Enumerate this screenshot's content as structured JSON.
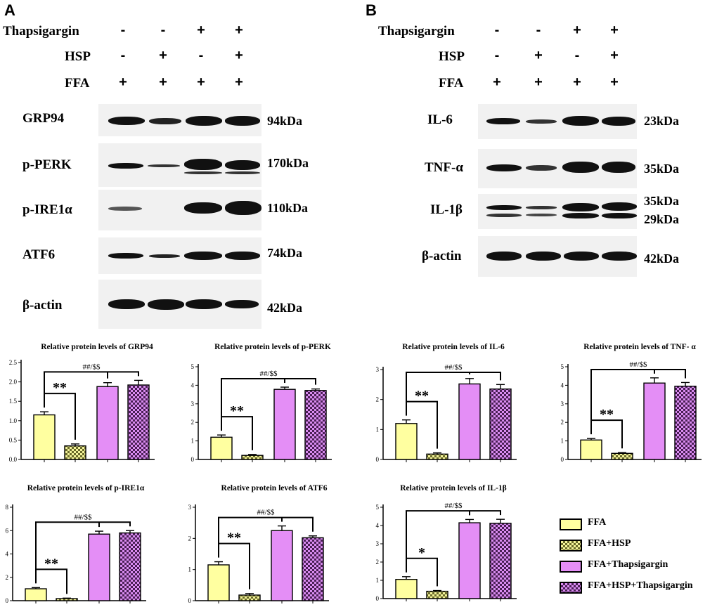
{
  "panel_a": {
    "letter": "A",
    "conditions": [
      {
        "label": "Thapsigargin",
        "signs": [
          "-",
          "-",
          "+",
          "+"
        ]
      },
      {
        "label": "HSP",
        "signs": [
          "-",
          "+",
          "-",
          "+"
        ]
      },
      {
        "label": "FFA",
        "signs": [
          "+",
          "+",
          "+",
          "+"
        ]
      }
    ],
    "blots": [
      {
        "label": "GRP94",
        "kda": [
          "94kDa"
        ]
      },
      {
        "label": "p-PERK",
        "kda": [
          "170kDa"
        ]
      },
      {
        "label": "p-IRE1α",
        "kda": [
          "110kDa"
        ]
      },
      {
        "label": "ATF6",
        "kda": [
          "74kDa"
        ]
      },
      {
        "label": "β-actin",
        "kda": [
          "42kDa"
        ]
      }
    ]
  },
  "panel_b": {
    "letter": "B",
    "conditions": [
      {
        "label": "Thapsigargin",
        "signs": [
          "-",
          "-",
          "+",
          "+"
        ]
      },
      {
        "label": "HSP",
        "signs": [
          "-",
          "+",
          "-",
          "+"
        ]
      },
      {
        "label": "FFA",
        "signs": [
          "+",
          "+",
          "+",
          "+"
        ]
      }
    ],
    "blots": [
      {
        "label": "IL-6",
        "kda": [
          "23kDa"
        ]
      },
      {
        "label": "TNF-α",
        "kda": [
          "35kDa"
        ]
      },
      {
        "label": "IL-1β",
        "kda": [
          "35kDa",
          "29kDa"
        ]
      },
      {
        "label": "β-actin",
        "kda": [
          "42kDa"
        ]
      }
    ]
  },
  "legend": {
    "entries": [
      "FFA",
      "FFA+HSP",
      "FFA+Thapsigargin",
      "FFA+HSP+Thapsigargin"
    ],
    "colors": {
      "ffa": "#ffffa0",
      "hsp": "#f3f39a",
      "thap": "#e48ef6",
      "combo": "#c978e0"
    }
  },
  "chart_data": [
    {
      "type": "bar",
      "title": "Relative protein levels of GRP94",
      "categories": [
        "FFA",
        "FFA+HSP",
        "FFA+Thapsigargin",
        "FFA+HSP+Thapsigargin"
      ],
      "values": [
        1.15,
        0.35,
        1.88,
        1.92
      ],
      "errors": [
        0.08,
        0.05,
        0.1,
        0.12
      ],
      "ylim": [
        0,
        2.5
      ],
      "yticks": [
        "0.0",
        "0.5",
        "1.0",
        "1.5",
        "2.0",
        "2.5"
      ],
      "sig_low": "**",
      "sig_high": "##/$$"
    },
    {
      "type": "bar",
      "title": "Relative protein levels of p-PERK",
      "categories": [
        "FFA",
        "FFA+HSP",
        "FFA+Thapsigargin",
        "FFA+HSP+Thapsigargin"
      ],
      "values": [
        1.2,
        0.22,
        3.78,
        3.72
      ],
      "errors": [
        0.12,
        0.05,
        0.12,
        0.08
      ],
      "ylim": [
        0,
        5
      ],
      "yticks": [
        "0",
        "1",
        "2",
        "3",
        "4",
        "5"
      ],
      "sig_low": "**",
      "sig_high": "##/$$"
    },
    {
      "type": "bar",
      "title": "Relative protein levels of IL-6",
      "categories": [
        "FFA",
        "FFA+HSP",
        "FFA+Thapsigargin",
        "FFA+HSP+Thapsigargin"
      ],
      "values": [
        1.2,
        0.18,
        2.52,
        2.35
      ],
      "errors": [
        0.12,
        0.04,
        0.18,
        0.15
      ],
      "ylim": [
        0,
        3
      ],
      "yticks": [
        "0",
        "1",
        "2",
        "3"
      ],
      "sig_low": "**",
      "sig_high": "##/$$"
    },
    {
      "type": "bar",
      "title": "Relative protein levels of TNF- α",
      "categories": [
        "FFA",
        "FFA+HSP",
        "FFA+Thapsigargin",
        "FFA+HSP+Thapsigargin"
      ],
      "values": [
        1.05,
        0.33,
        4.12,
        3.95
      ],
      "errors": [
        0.08,
        0.04,
        0.28,
        0.2
      ],
      "ylim": [
        0,
        5
      ],
      "yticks": [
        "0",
        "1",
        "2",
        "3",
        "4",
        "5"
      ],
      "sig_low": "**",
      "sig_high": "##/$$"
    },
    {
      "type": "bar",
      "title": "Relative protein levels of p-IRE1α",
      "categories": [
        "FFA",
        "FFA+HSP",
        "FFA+Thapsigargin",
        "FFA+HSP+Thapsigargin"
      ],
      "values": [
        1.02,
        0.18,
        5.7,
        5.8
      ],
      "errors": [
        0.1,
        0.04,
        0.25,
        0.2
      ],
      "ylim": [
        0,
        8
      ],
      "yticks": [
        "0",
        "2",
        "4",
        "6",
        "8"
      ],
      "sig_low": "**",
      "sig_high": "##/$$"
    },
    {
      "type": "bar",
      "title": "Relative protein levels of ATF6",
      "categories": [
        "FFA",
        "FFA+HSP",
        "FFA+Thapsigargin",
        "FFA+HSP+Thapsigargin"
      ],
      "values": [
        1.15,
        0.18,
        2.25,
        2.02
      ],
      "errors": [
        0.1,
        0.05,
        0.15,
        0.06
      ],
      "ylim": [
        0,
        3
      ],
      "yticks": [
        "0",
        "1",
        "2",
        "3"
      ],
      "sig_low": "**",
      "sig_high": "##/$$"
    },
    {
      "type": "bar",
      "title": "Relative protein levels of IL-1β",
      "categories": [
        "FFA",
        "FFA+HSP",
        "FFA+Thapsigargin",
        "FFA+HSP+Thapsigargin"
      ],
      "values": [
        1.05,
        0.4,
        4.15,
        4.12
      ],
      "errors": [
        0.15,
        0.04,
        0.18,
        0.22
      ],
      "ylim": [
        0,
        5
      ],
      "yticks": [
        "0",
        "1",
        "2",
        "3",
        "4",
        "5"
      ],
      "sig_low": "*",
      "sig_high": "##/$$"
    }
  ]
}
